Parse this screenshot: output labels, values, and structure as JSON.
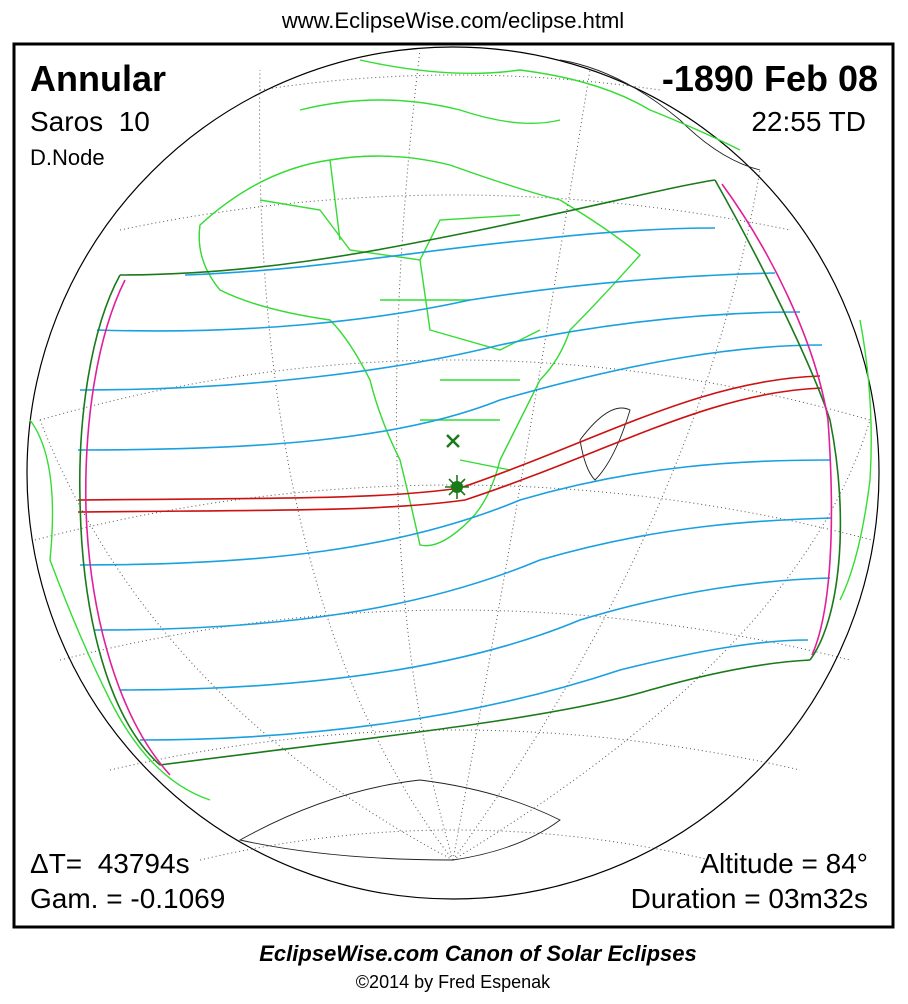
{
  "header": {
    "url": "www.EclipseWise.com/eclipse.html"
  },
  "eclipse": {
    "type": "Annular",
    "date": "-1890 Feb 08",
    "saros": "Saros  10",
    "time": "22:55 TD",
    "node": "D.Node",
    "delta_t": "ΔT=  43794s",
    "gamma": "Gam. = -0.1069",
    "altitude": "Altitude = 84°",
    "duration": "Duration = 03m32s"
  },
  "footer": {
    "title": "EclipseWise.com Canon of Solar Eclipses",
    "copyright": "©2014 by Fred Espenak"
  }
}
